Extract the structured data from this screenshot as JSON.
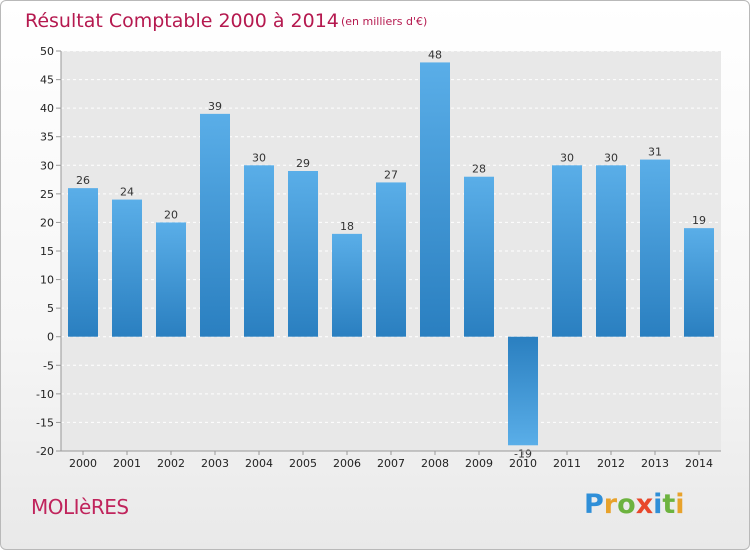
{
  "chart_data": {
    "type": "bar",
    "title": "Résultat Comptable 2000 à 2014",
    "subtitle": "(en milliers d'€)",
    "categories": [
      "2000",
      "2001",
      "2002",
      "2003",
      "2004",
      "2005",
      "2006",
      "2007",
      "2008",
      "2009",
      "2010",
      "2011",
      "2012",
      "2013",
      "2014"
    ],
    "values": [
      26,
      24,
      20,
      39,
      30,
      29,
      18,
      27,
      48,
      28,
      -19,
      30,
      30,
      31,
      19
    ],
    "ylim": [
      -20,
      50
    ],
    "yticks": [
      50,
      45,
      40,
      35,
      30,
      25,
      20,
      15,
      10,
      5,
      0,
      -5,
      -10,
      -15,
      -20
    ],
    "xlabel": "",
    "ylabel": "",
    "grid": true,
    "bar_color_top": "#5aaee8",
    "bar_color_bottom": "#2a7fc0"
  },
  "footer": {
    "commune": "MOLIèRES",
    "logo_letters": [
      "P",
      "r",
      "o",
      "x",
      "i",
      "t",
      "i"
    ],
    "logo_colors": [
      "#2f8fd8",
      "#e8a22b",
      "#6db33f",
      "#e8472b",
      "#2f8fd8",
      "#6db33f",
      "#e8a22b"
    ]
  }
}
